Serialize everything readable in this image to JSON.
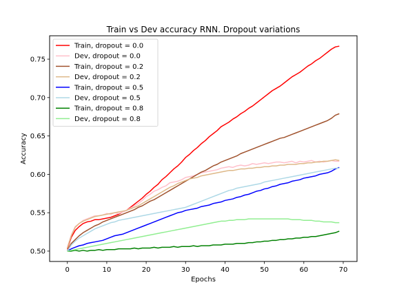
{
  "chart_data": {
    "type": "line",
    "title": "Train vs Dev accuracy RNN. Dropout variations",
    "xlabel": "Epochs",
    "ylabel": "Accuracy",
    "xlim": [
      -4.5,
      73.5
    ],
    "ylim": [
      0.4865,
      0.7805
    ],
    "xticks": [
      0,
      10,
      20,
      30,
      40,
      50,
      60,
      70
    ],
    "yticks": [
      0.5,
      0.55,
      0.6,
      0.65,
      0.7,
      0.75
    ],
    "ytick_labels": [
      "0.50",
      "0.55",
      "0.60",
      "0.65",
      "0.70",
      "0.75"
    ],
    "grid": false,
    "legend_position": "top-left",
    "x": [
      0,
      1,
      2,
      3,
      4,
      5,
      6,
      7,
      8,
      9,
      10,
      11,
      12,
      13,
      14,
      15,
      16,
      17,
      18,
      19,
      20,
      21,
      22,
      23,
      24,
      25,
      26,
      27,
      28,
      29,
      30,
      31,
      32,
      33,
      34,
      35,
      36,
      37,
      38,
      39,
      40,
      41,
      42,
      43,
      44,
      45,
      46,
      47,
      48,
      49,
      50,
      51,
      52,
      53,
      54,
      55,
      56,
      57,
      58,
      59,
      60,
      61,
      62,
      63,
      64,
      65,
      66,
      67,
      68,
      69
    ],
    "series": [
      {
        "name": "Train, dropout = 0.0",
        "color": "#ff0000",
        "values": [
          0.503,
          0.518,
          0.527,
          0.532,
          0.536,
          0.538,
          0.539,
          0.541,
          0.541,
          0.542,
          0.543,
          0.544,
          0.546,
          0.548,
          0.551,
          0.553,
          0.557,
          0.561,
          0.565,
          0.569,
          0.574,
          0.578,
          0.583,
          0.587,
          0.593,
          0.597,
          0.602,
          0.607,
          0.611,
          0.616,
          0.622,
          0.626,
          0.631,
          0.635,
          0.64,
          0.644,
          0.649,
          0.653,
          0.657,
          0.662,
          0.665,
          0.668,
          0.672,
          0.675,
          0.679,
          0.682,
          0.686,
          0.689,
          0.693,
          0.697,
          0.701,
          0.705,
          0.709,
          0.712,
          0.715,
          0.719,
          0.723,
          0.727,
          0.73,
          0.733,
          0.737,
          0.741,
          0.744,
          0.748,
          0.751,
          0.755,
          0.759,
          0.763,
          0.766,
          0.767
        ]
      },
      {
        "name": "Dev, dropout = 0.0",
        "color": "#ffc0cb",
        "values": [
          0.505,
          0.521,
          0.532,
          0.536,
          0.54,
          0.542,
          0.544,
          0.546,
          0.546,
          0.547,
          0.549,
          0.548,
          0.55,
          0.549,
          0.551,
          0.553,
          0.556,
          0.559,
          0.562,
          0.566,
          0.571,
          0.574,
          0.578,
          0.58,
          0.583,
          0.585,
          0.589,
          0.59,
          0.591,
          0.593,
          0.596,
          0.597,
          0.598,
          0.6,
          0.602,
          0.603,
          0.604,
          0.605,
          0.606,
          0.608,
          0.609,
          0.61,
          0.609,
          0.611,
          0.612,
          0.611,
          0.612,
          0.614,
          0.613,
          0.614,
          0.615,
          0.614,
          0.615,
          0.616,
          0.616,
          0.615,
          0.616,
          0.617,
          0.615,
          0.617,
          0.616,
          0.617,
          0.618,
          0.616,
          0.617,
          0.616,
          0.617,
          0.618,
          0.617,
          0.617
        ]
      },
      {
        "name": "Train, dropout = 0.2",
        "color": "#a0522d",
        "values": [
          0.501,
          0.51,
          0.515,
          0.52,
          0.524,
          0.527,
          0.53,
          0.533,
          0.535,
          0.538,
          0.54,
          0.542,
          0.544,
          0.546,
          0.548,
          0.55,
          0.552,
          0.554,
          0.557,
          0.559,
          0.562,
          0.565,
          0.567,
          0.57,
          0.573,
          0.576,
          0.579,
          0.582,
          0.585,
          0.588,
          0.591,
          0.594,
          0.597,
          0.6,
          0.603,
          0.605,
          0.608,
          0.611,
          0.613,
          0.616,
          0.618,
          0.62,
          0.622,
          0.624,
          0.627,
          0.629,
          0.631,
          0.633,
          0.635,
          0.637,
          0.639,
          0.641,
          0.643,
          0.645,
          0.647,
          0.648,
          0.65,
          0.652,
          0.654,
          0.656,
          0.658,
          0.66,
          0.662,
          0.664,
          0.666,
          0.668,
          0.67,
          0.673,
          0.677,
          0.679
        ]
      },
      {
        "name": "Dev, dropout = 0.2",
        "color": "#deb887",
        "values": [
          0.504,
          0.52,
          0.531,
          0.536,
          0.539,
          0.541,
          0.543,
          0.545,
          0.546,
          0.547,
          0.548,
          0.549,
          0.55,
          0.551,
          0.552,
          0.553,
          0.555,
          0.557,
          0.559,
          0.562,
          0.565,
          0.568,
          0.571,
          0.574,
          0.577,
          0.58,
          0.583,
          0.585,
          0.588,
          0.59,
          0.592,
          0.594,
          0.595,
          0.596,
          0.598,
          0.599,
          0.6,
          0.601,
          0.602,
          0.603,
          0.604,
          0.605,
          0.605,
          0.606,
          0.607,
          0.607,
          0.608,
          0.608,
          0.609,
          0.609,
          0.61,
          0.61,
          0.611,
          0.611,
          0.612,
          0.612,
          0.613,
          0.613,
          0.613,
          0.614,
          0.614,
          0.615,
          0.615,
          0.616,
          0.616,
          0.617,
          0.617,
          0.618,
          0.619,
          0.618
        ]
      },
      {
        "name": "Train, dropout = 0.5",
        "color": "#0000ff",
        "values": [
          0.5,
          0.503,
          0.505,
          0.507,
          0.508,
          0.51,
          0.511,
          0.512,
          0.513,
          0.514,
          0.516,
          0.518,
          0.52,
          0.521,
          0.522,
          0.524,
          0.526,
          0.528,
          0.53,
          0.532,
          0.534,
          0.536,
          0.538,
          0.54,
          0.542,
          0.544,
          0.546,
          0.548,
          0.55,
          0.551,
          0.553,
          0.554,
          0.555,
          0.556,
          0.558,
          0.559,
          0.56,
          0.562,
          0.563,
          0.564,
          0.566,
          0.567,
          0.568,
          0.57,
          0.571,
          0.573,
          0.574,
          0.576,
          0.578,
          0.579,
          0.581,
          0.582,
          0.584,
          0.585,
          0.587,
          0.588,
          0.589,
          0.591,
          0.592,
          0.593,
          0.595,
          0.596,
          0.597,
          0.598,
          0.6,
          0.601,
          0.602,
          0.604,
          0.607,
          0.609
        ]
      },
      {
        "name": "Dev, dropout = 0.5",
        "color": "#add8e6",
        "values": [
          0.5,
          0.508,
          0.513,
          0.517,
          0.52,
          0.523,
          0.526,
          0.529,
          0.531,
          0.533,
          0.535,
          0.537,
          0.538,
          0.54,
          0.541,
          0.542,
          0.543,
          0.544,
          0.545,
          0.546,
          0.547,
          0.548,
          0.549,
          0.55,
          0.551,
          0.552,
          0.553,
          0.554,
          0.555,
          0.556,
          0.557,
          0.559,
          0.561,
          0.563,
          0.565,
          0.567,
          0.569,
          0.571,
          0.573,
          0.575,
          0.577,
          0.579,
          0.58,
          0.582,
          0.583,
          0.584,
          0.585,
          0.586,
          0.587,
          0.588,
          0.59,
          0.591,
          0.592,
          0.593,
          0.594,
          0.595,
          0.596,
          0.597,
          0.598,
          0.599,
          0.6,
          0.601,
          0.602,
          0.603,
          0.604,
          0.605,
          0.606,
          0.607,
          0.608,
          0.608
        ]
      },
      {
        "name": "Train, dropout = 0.8",
        "color": "#008000",
        "values": [
          0.5,
          0.5,
          0.501,
          0.5,
          0.501,
          0.5,
          0.501,
          0.501,
          0.502,
          0.501,
          0.502,
          0.502,
          0.502,
          0.503,
          0.503,
          0.503,
          0.503,
          0.504,
          0.503,
          0.504,
          0.504,
          0.504,
          0.505,
          0.504,
          0.505,
          0.505,
          0.505,
          0.506,
          0.505,
          0.506,
          0.506,
          0.506,
          0.507,
          0.506,
          0.507,
          0.507,
          0.507,
          0.508,
          0.508,
          0.508,
          0.509,
          0.509,
          0.509,
          0.51,
          0.51,
          0.51,
          0.511,
          0.511,
          0.512,
          0.512,
          0.513,
          0.513,
          0.514,
          0.514,
          0.515,
          0.515,
          0.516,
          0.516,
          0.517,
          0.517,
          0.518,
          0.518,
          0.519,
          0.519,
          0.52,
          0.521,
          0.522,
          0.523,
          0.524,
          0.526
        ]
      },
      {
        "name": "Dev, dropout = 0.8",
        "color": "#90ee90",
        "values": [
          0.5,
          0.501,
          0.502,
          0.503,
          0.504,
          0.505,
          0.506,
          0.507,
          0.508,
          0.509,
          0.51,
          0.511,
          0.512,
          0.513,
          0.514,
          0.515,
          0.516,
          0.517,
          0.518,
          0.519,
          0.52,
          0.521,
          0.522,
          0.523,
          0.524,
          0.525,
          0.526,
          0.527,
          0.528,
          0.529,
          0.53,
          0.531,
          0.532,
          0.533,
          0.534,
          0.535,
          0.536,
          0.537,
          0.538,
          0.539,
          0.539,
          0.54,
          0.54,
          0.541,
          0.541,
          0.541,
          0.542,
          0.542,
          0.542,
          0.542,
          0.542,
          0.542,
          0.542,
          0.542,
          0.542,
          0.542,
          0.542,
          0.541,
          0.541,
          0.541,
          0.54,
          0.54,
          0.54,
          0.539,
          0.539,
          0.538,
          0.538,
          0.538,
          0.537,
          0.537
        ]
      }
    ]
  }
}
